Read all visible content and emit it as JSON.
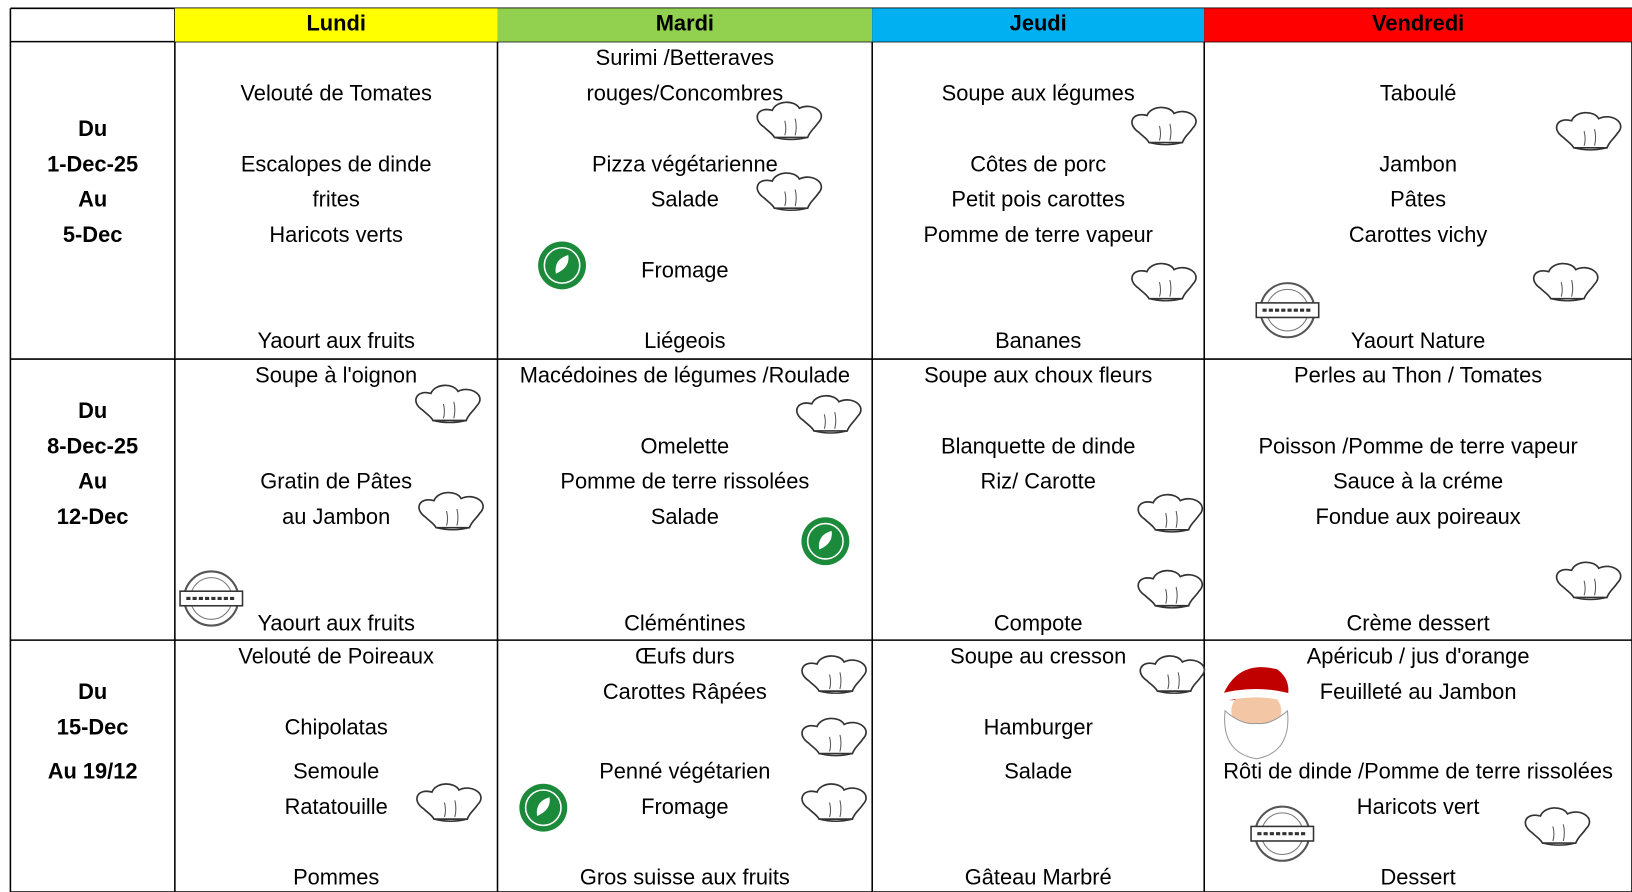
{
  "header": {
    "days": [
      "Lundi",
      "Mardi",
      "Jeudi",
      "Vendredi"
    ]
  },
  "weeks": [
    {
      "label": [
        "Du",
        "1-Dec-25",
        "Au",
        "5-Dec"
      ],
      "cells": [
        [
          "Velouté de Tomates",
          "Escalopes de dinde",
          "frites",
          "Haricots verts",
          "Yaourt aux fruits"
        ],
        [
          "Surimi /Betteraves",
          "rouges/Concombres",
          "Pizza végétarienne",
          "Salade",
          "Fromage",
          "Liégeois"
        ],
        [
          "Soupe aux légumes",
          "Côtes de porc",
          "Petit pois carottes",
          "Pomme de terre vapeur",
          "Bananes"
        ],
        [
          "Taboulé",
          "Jambon",
          "Pâtes",
          "Carottes vichy",
          "Yaourt Nature"
        ]
      ]
    },
    {
      "label": [
        "Du",
        "8-Dec-25",
        "Au",
        "12-Dec"
      ],
      "cells": [
        [
          "Soupe à l'oignon",
          "Gratin de Pâtes",
          "au Jambon",
          "Yaourt aux fruits"
        ],
        [
          "Macédoines de légumes /Roulade",
          "Omelette",
          "Pomme de terre rissolées",
          "Salade",
          "Cléméntines"
        ],
        [
          "Soupe aux choux fleurs",
          "Blanquette de dinde",
          "Riz/ Carotte",
          "Compote"
        ],
        [
          "Perles au Thon / Tomates",
          "Poisson /Pomme de terre vapeur",
          "Sauce à la créme",
          "Fondue aux poireaux",
          "Crème dessert"
        ]
      ]
    },
    {
      "label": [
        "Du",
        "15-Dec",
        "Au 19/12"
      ],
      "cells": [
        [
          "Velouté de Poireaux",
          "Chipolatas",
          "Semoule",
          "Ratatouille",
          "Pommes"
        ],
        [
          "Œufs durs",
          "Carottes Râpées",
          "Penné végétarien",
          "Fromage",
          "Gros suisse aux fruits"
        ],
        [
          "Soupe au cresson",
          "Hamburger",
          "Salade",
          "Gâteau Marbré"
        ],
        [
          "Apéricub  / jus d'orange",
          "Feuilleté au Jambon",
          "Rôti de dinde /Pomme de terre rissolées",
          "Haricots vert",
          "Dessert"
        ]
      ]
    }
  ]
}
